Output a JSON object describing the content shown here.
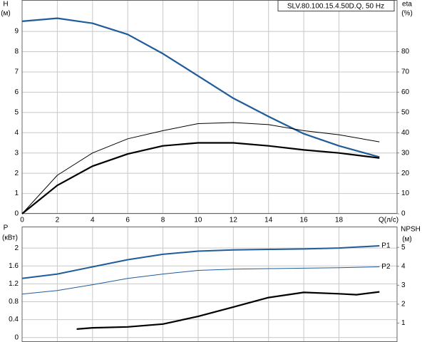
{
  "chart_data": [
    {
      "type": "line",
      "title": "SLV.80.100.15.4.50D.Q, 50 Hz",
      "y_label": "H",
      "y_unit": "(м)",
      "y2_label": "eta",
      "y2_unit": "(%)",
      "x_label": "Q(л/с)",
      "xlim": [
        0,
        21.3
      ],
      "xticks": [
        0,
        2,
        4,
        6,
        8,
        10,
        12,
        14,
        16,
        18
      ],
      "ylim": [
        0,
        10.55
      ],
      "yticks": [
        0,
        1,
        2,
        3,
        4,
        5,
        6,
        7,
        8,
        9
      ],
      "y2lim": [
        0,
        105.5
      ],
      "y2ticks": [
        0,
        10,
        20,
        30,
        40,
        50,
        60,
        70,
        80
      ],
      "grid": true,
      "series": [
        {
          "color": "#1f5c99",
          "width": 2.2,
          "x": [
            0,
            2,
            4,
            6,
            8,
            10,
            12,
            14,
            16,
            18,
            20.3
          ],
          "values": [
            9.5,
            9.65,
            9.4,
            8.85,
            7.9,
            6.8,
            5.7,
            4.8,
            3.95,
            3.35,
            2.8
          ]
        },
        {
          "color": "#000000",
          "width": 1,
          "axis": "y2",
          "x": [
            0,
            2,
            4,
            6,
            8,
            10,
            12,
            14,
            16,
            18,
            20.3
          ],
          "values": [
            0,
            19,
            30,
            37,
            41,
            44.5,
            45,
            44,
            41,
            39,
            35.5
          ]
        },
        {
          "color": "#000000",
          "width": 2.2,
          "axis": "y2",
          "x": [
            0,
            2,
            4,
            6,
            8,
            10,
            12,
            14,
            16,
            18,
            20.3
          ],
          "values": [
            0,
            14,
            23.5,
            29.5,
            33.5,
            35,
            35,
            33.5,
            31.5,
            30,
            27.5
          ]
        }
      ]
    },
    {
      "type": "line",
      "y_label": "P",
      "y_unit": "(кВт)",
      "y2_label": "NPSH",
      "y2_unit": "(м)",
      "xlim": [
        0,
        21.3
      ],
      "xticks": [
        0,
        2,
        4,
        6,
        8,
        10,
        12,
        14,
        16,
        18
      ],
      "ylim": [
        -0.1,
        2.48
      ],
      "yticks": [
        0,
        0.4,
        0.8,
        1.2,
        1.6,
        2
      ],
      "y2lim": [
        0,
        6.1
      ],
      "y2ticks": [
        1,
        2,
        3,
        4,
        5
      ],
      "grid": true,
      "series": [
        {
          "name": "P1",
          "color": "#1f5c99",
          "width": 2,
          "x": [
            0,
            2,
            4,
            6,
            8,
            10,
            12,
            14,
            16,
            18,
            20.3
          ],
          "values": [
            1.32,
            1.42,
            1.58,
            1.74,
            1.86,
            1.93,
            1.96,
            1.97,
            1.98,
            2.0,
            2.05
          ]
        },
        {
          "name": "P2",
          "color": "#1f5c99",
          "width": 1,
          "x": [
            0,
            2,
            4,
            6,
            8,
            10,
            12,
            14,
            16,
            18,
            20.3
          ],
          "values": [
            0.97,
            1.05,
            1.18,
            1.32,
            1.42,
            1.5,
            1.53,
            1.54,
            1.55,
            1.56,
            1.58
          ]
        },
        {
          "color": "#000000",
          "width": 2.2,
          "axis": "y2",
          "x": [
            3.1,
            4,
            6,
            8,
            10,
            12,
            14,
            16,
            18,
            19,
            20.3
          ],
          "values": [
            0.68,
            0.75,
            0.8,
            0.95,
            1.35,
            1.85,
            2.35,
            2.62,
            2.55,
            2.5,
            2.65
          ]
        }
      ]
    }
  ]
}
